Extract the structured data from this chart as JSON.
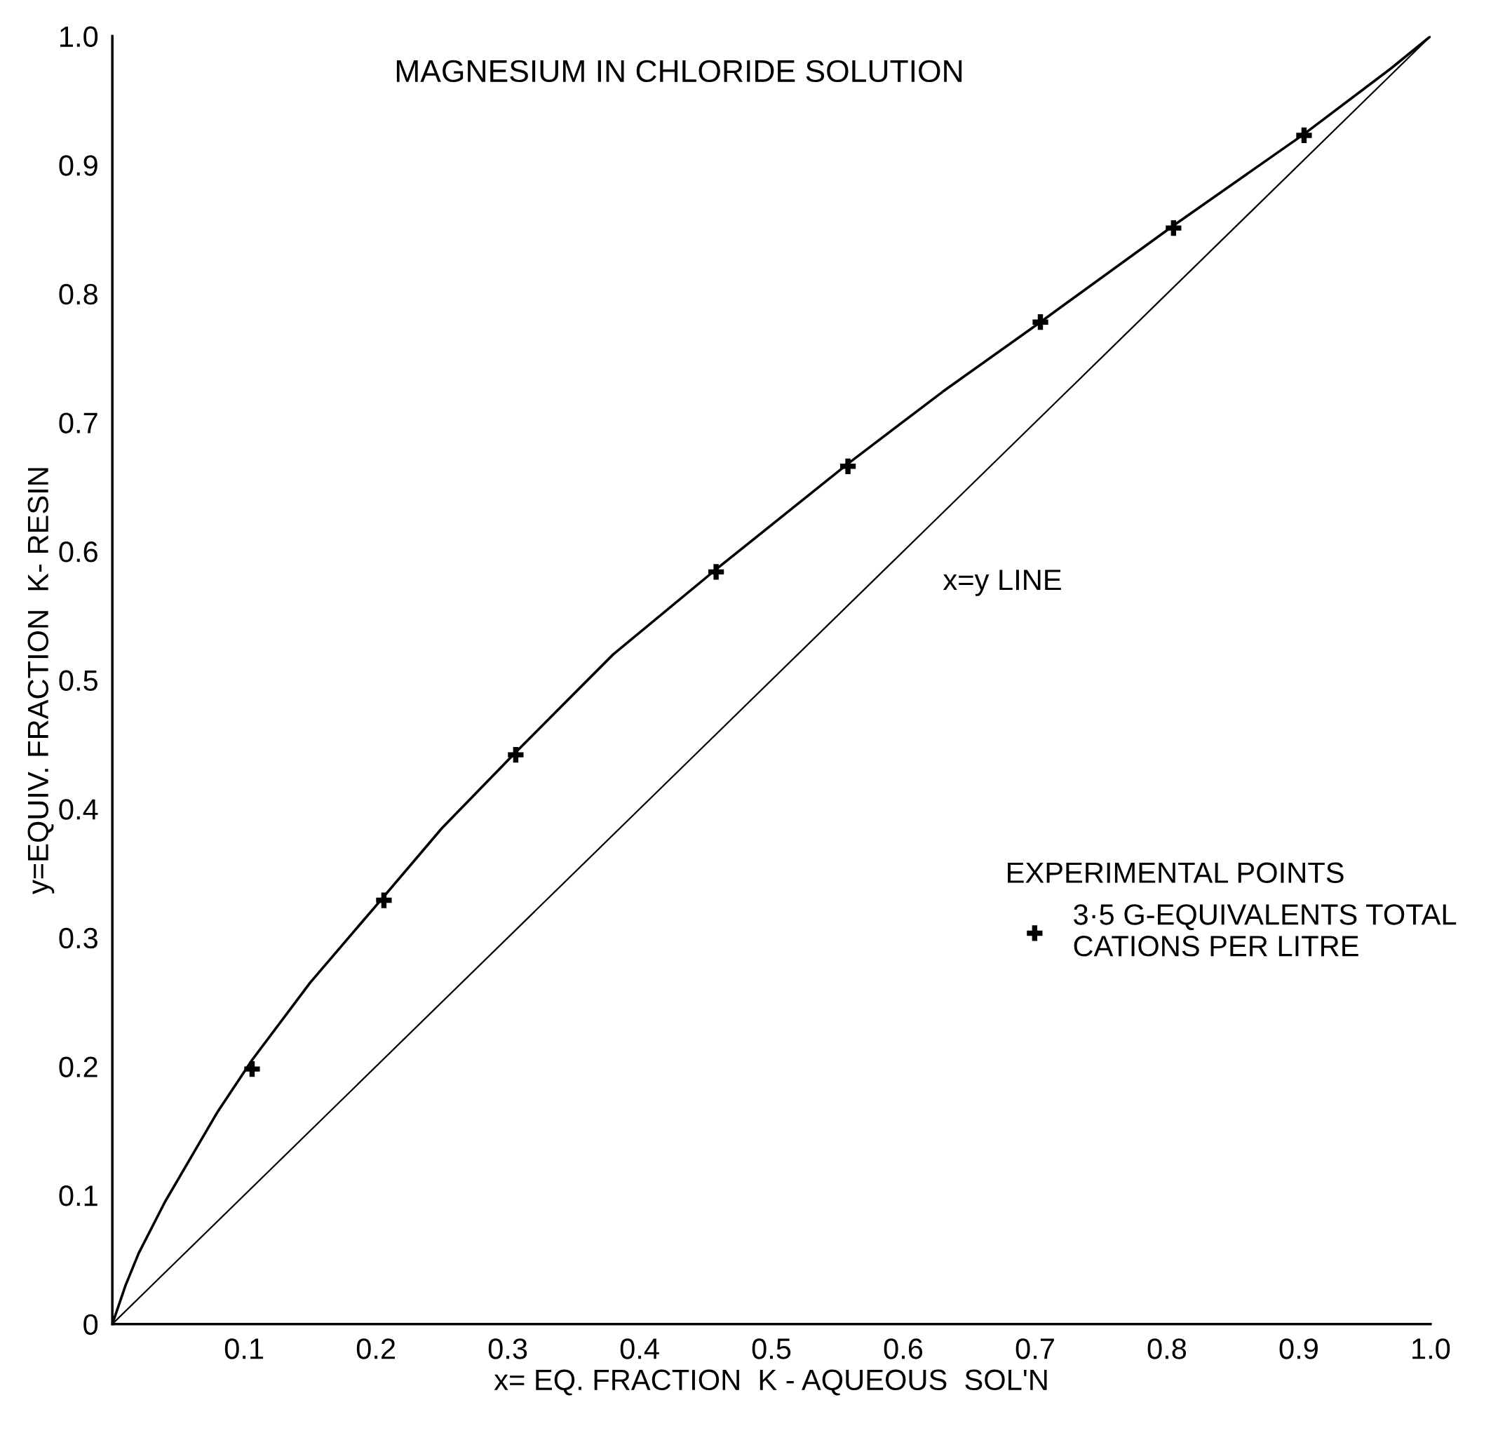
{
  "chart_data": {
    "type": "line",
    "title": "MAGNESIUM IN CHLORIDE SOLUTION",
    "xlabel": "x= EQ. FRACTION  K - AQUEOUS  SOL'N",
    "ylabel": "y=EQUIV. FRACTION  K- RESIN",
    "xlim": [
      0,
      1
    ],
    "ylim": [
      0,
      1
    ],
    "xticks": [
      0.1,
      0.2,
      0.3,
      0.4,
      0.5,
      0.6,
      0.7,
      0.8,
      0.9,
      {
        "value": 1,
        "label": "1.0"
      }
    ],
    "yticks": [
      0,
      0.1,
      0.2,
      0.3,
      0.4,
      0.5,
      0.6,
      0.7,
      0.8,
      0.9,
      {
        "value": 1,
        "label": "1.0"
      }
    ],
    "grid": false,
    "legend": "right",
    "legend_title": "EXPERIMENTAL POINTS",
    "series": [
      {
        "type": "line",
        "color": "#000000",
        "line_style": "solid",
        "marker": "none",
        "x": [
          0,
          0.01,
          0.02,
          0.04,
          0.06,
          0.08,
          0.106,
          0.15,
          0.206,
          0.25,
          0.306,
          0.38,
          0.458,
          0.558,
          0.63,
          0.704,
          0.805,
          0.904,
          0.97,
          1.0
        ],
        "values": [
          0,
          0.03,
          0.055,
          0.095,
          0.13,
          0.165,
          0.205,
          0.265,
          0.332,
          0.385,
          0.444,
          0.52,
          0.586,
          0.668,
          0.724,
          0.778,
          0.853,
          0.924,
          0.975,
          1.0
        ]
      },
      {
        "name": "x=y LINE",
        "color": "#000000",
        "line_style": "solid",
        "marker": "none",
        "x": [
          0,
          1
        ],
        "values": [
          0,
          1
        ]
      },
      {
        "type": "scatter",
        "name": "3·5 G-EQUIVALENTS TOTAL\nCATIONS PER LITRE",
        "color": "#000000",
        "marker": "cross",
        "x": [
          0.106,
          0.206,
          0.306,
          0.458,
          0.558,
          0.704,
          0.805,
          0.904
        ],
        "values": [
          0.198,
          0.329,
          0.442,
          0.584,
          0.666,
          0.778,
          0.851,
          0.923
        ]
      }
    ]
  }
}
